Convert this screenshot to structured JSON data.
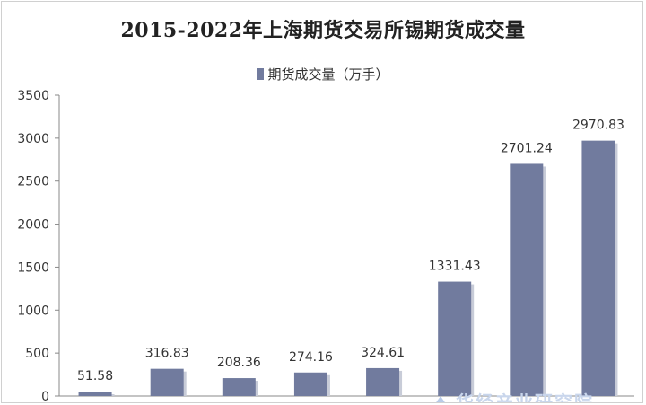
{
  "chart_data": {
    "type": "bar",
    "title": "2015-2022年上海期货交易所锡期货成交量",
    "legend": "期货成交量（万手）",
    "legend_position": "top",
    "series": [
      {
        "name": "期货成交量（万手）",
        "values": [
          51.58,
          316.83,
          208.36,
          274.16,
          324.61,
          1331.43,
          2701.24,
          2970.83
        ],
        "data_labels": [
          "51.58",
          "316.83",
          "208.36",
          "274.16",
          "324.61",
          "1331.43",
          "2701.24",
          "2970.83"
        ]
      }
    ],
    "y_ticks": [
      0,
      500,
      1000,
      1500,
      2000,
      2500,
      3000,
      3500
    ],
    "ylim": [
      0,
      3500
    ],
    "grid": false,
    "bar_color": "#717b9e"
  },
  "watermark": {
    "text": "华经产业研究院",
    "icon": "logo-icon"
  }
}
